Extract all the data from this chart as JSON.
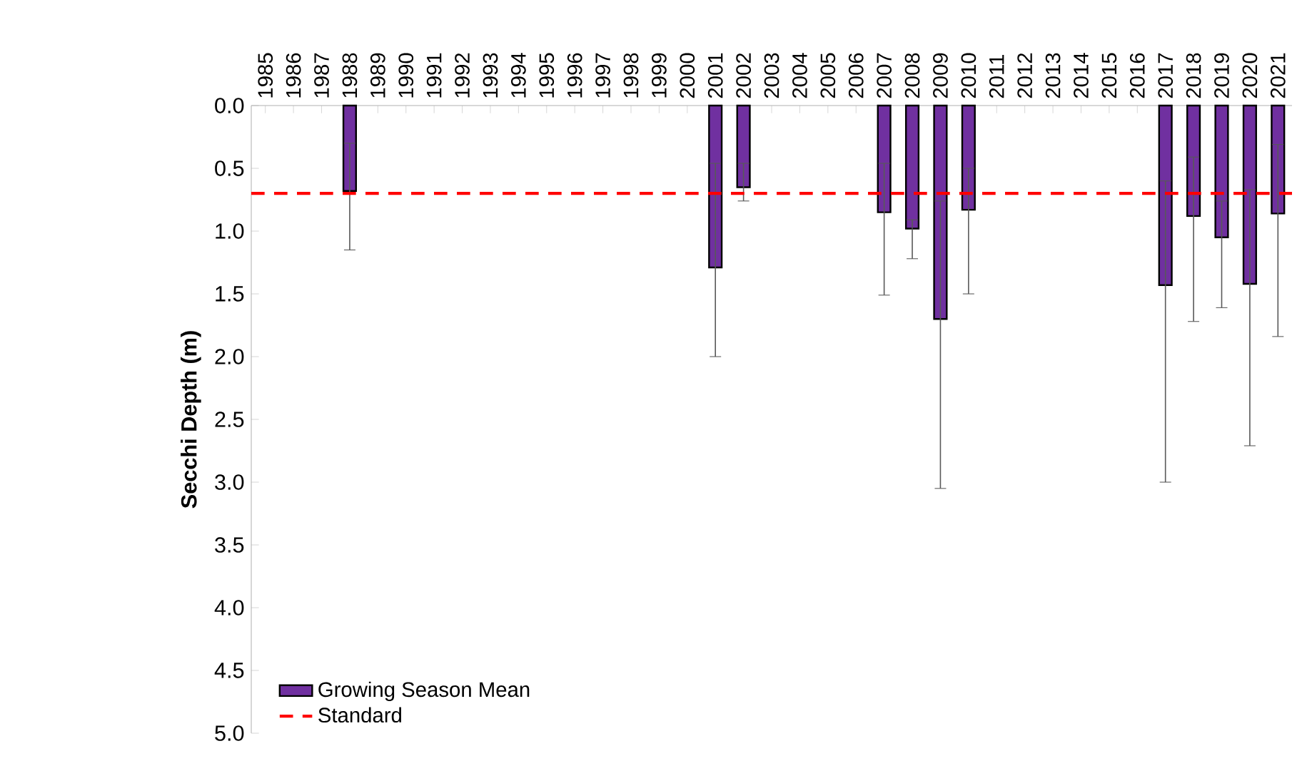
{
  "chart_data": {
    "type": "bar",
    "ylabel": "Secchi Depth (m)",
    "categories": [
      "1985",
      "1986",
      "1987",
      "1988",
      "1989",
      "1990",
      "1991",
      "1992",
      "1993",
      "1994",
      "1995",
      "1996",
      "1997",
      "1998",
      "1999",
      "2000",
      "2001",
      "2002",
      "2003",
      "2004",
      "2005",
      "2006",
      "2007",
      "2008",
      "2009",
      "2010",
      "2011",
      "2012",
      "2013",
      "2014",
      "2015",
      "2016",
      "2017",
      "2018",
      "2019",
      "2020",
      "2021"
    ],
    "series": [
      {
        "name": "Growing Season Mean",
        "color": "#7030a0",
        "values": [
          null,
          null,
          null,
          0.68,
          null,
          null,
          null,
          null,
          null,
          null,
          null,
          null,
          null,
          null,
          null,
          null,
          1.29,
          0.65,
          null,
          null,
          null,
          null,
          0.85,
          0.98,
          1.7,
          0.83,
          null,
          null,
          null,
          null,
          null,
          null,
          1.43,
          0.88,
          1.05,
          1.42,
          0.86
        ],
        "errors": [
          null,
          null,
          null,
          [
            0.3,
            1.15
          ],
          null,
          null,
          null,
          null,
          null,
          null,
          null,
          null,
          null,
          null,
          null,
          null,
          [
            0.46,
            2.0
          ],
          [
            0.46,
            0.76
          ],
          null,
          null,
          null,
          null,
          [
            0.46,
            1.51
          ],
          [
            0.91,
            1.22
          ],
          [
            0.76,
            3.05
          ],
          [
            0.5,
            1.5
          ],
          null,
          null,
          null,
          null,
          null,
          null,
          [
            0.6,
            3.0
          ],
          [
            0.41,
            1.72
          ],
          [
            0.76,
            1.61
          ],
          [
            0.67,
            2.71
          ],
          [
            0.31,
            1.84
          ]
        ]
      }
    ],
    "ylim": [
      5,
      0
    ],
    "yticks": [
      {
        "value": 0,
        "label": "0.0"
      },
      {
        "value": 0.5,
        "label": "0.5"
      },
      {
        "value": 1,
        "label": "1.0"
      },
      {
        "value": 1.5,
        "label": "1.5"
      },
      {
        "value": 2,
        "label": "2.0"
      },
      {
        "value": 2.5,
        "label": "2.5"
      },
      {
        "value": 3,
        "label": "3.0"
      },
      {
        "value": 3.5,
        "label": "3.5"
      },
      {
        "value": 4,
        "label": "4.0"
      },
      {
        "value": 4.5,
        "label": "4.5"
      },
      {
        "value": 5,
        "label": "5.0"
      }
    ],
    "ref_lines": [
      {
        "axis": "y",
        "value": 0.7,
        "label": "Standard",
        "color": "#ff0000",
        "line_style": "dashed"
      }
    ],
    "legend": "bottom left",
    "grid": false
  }
}
